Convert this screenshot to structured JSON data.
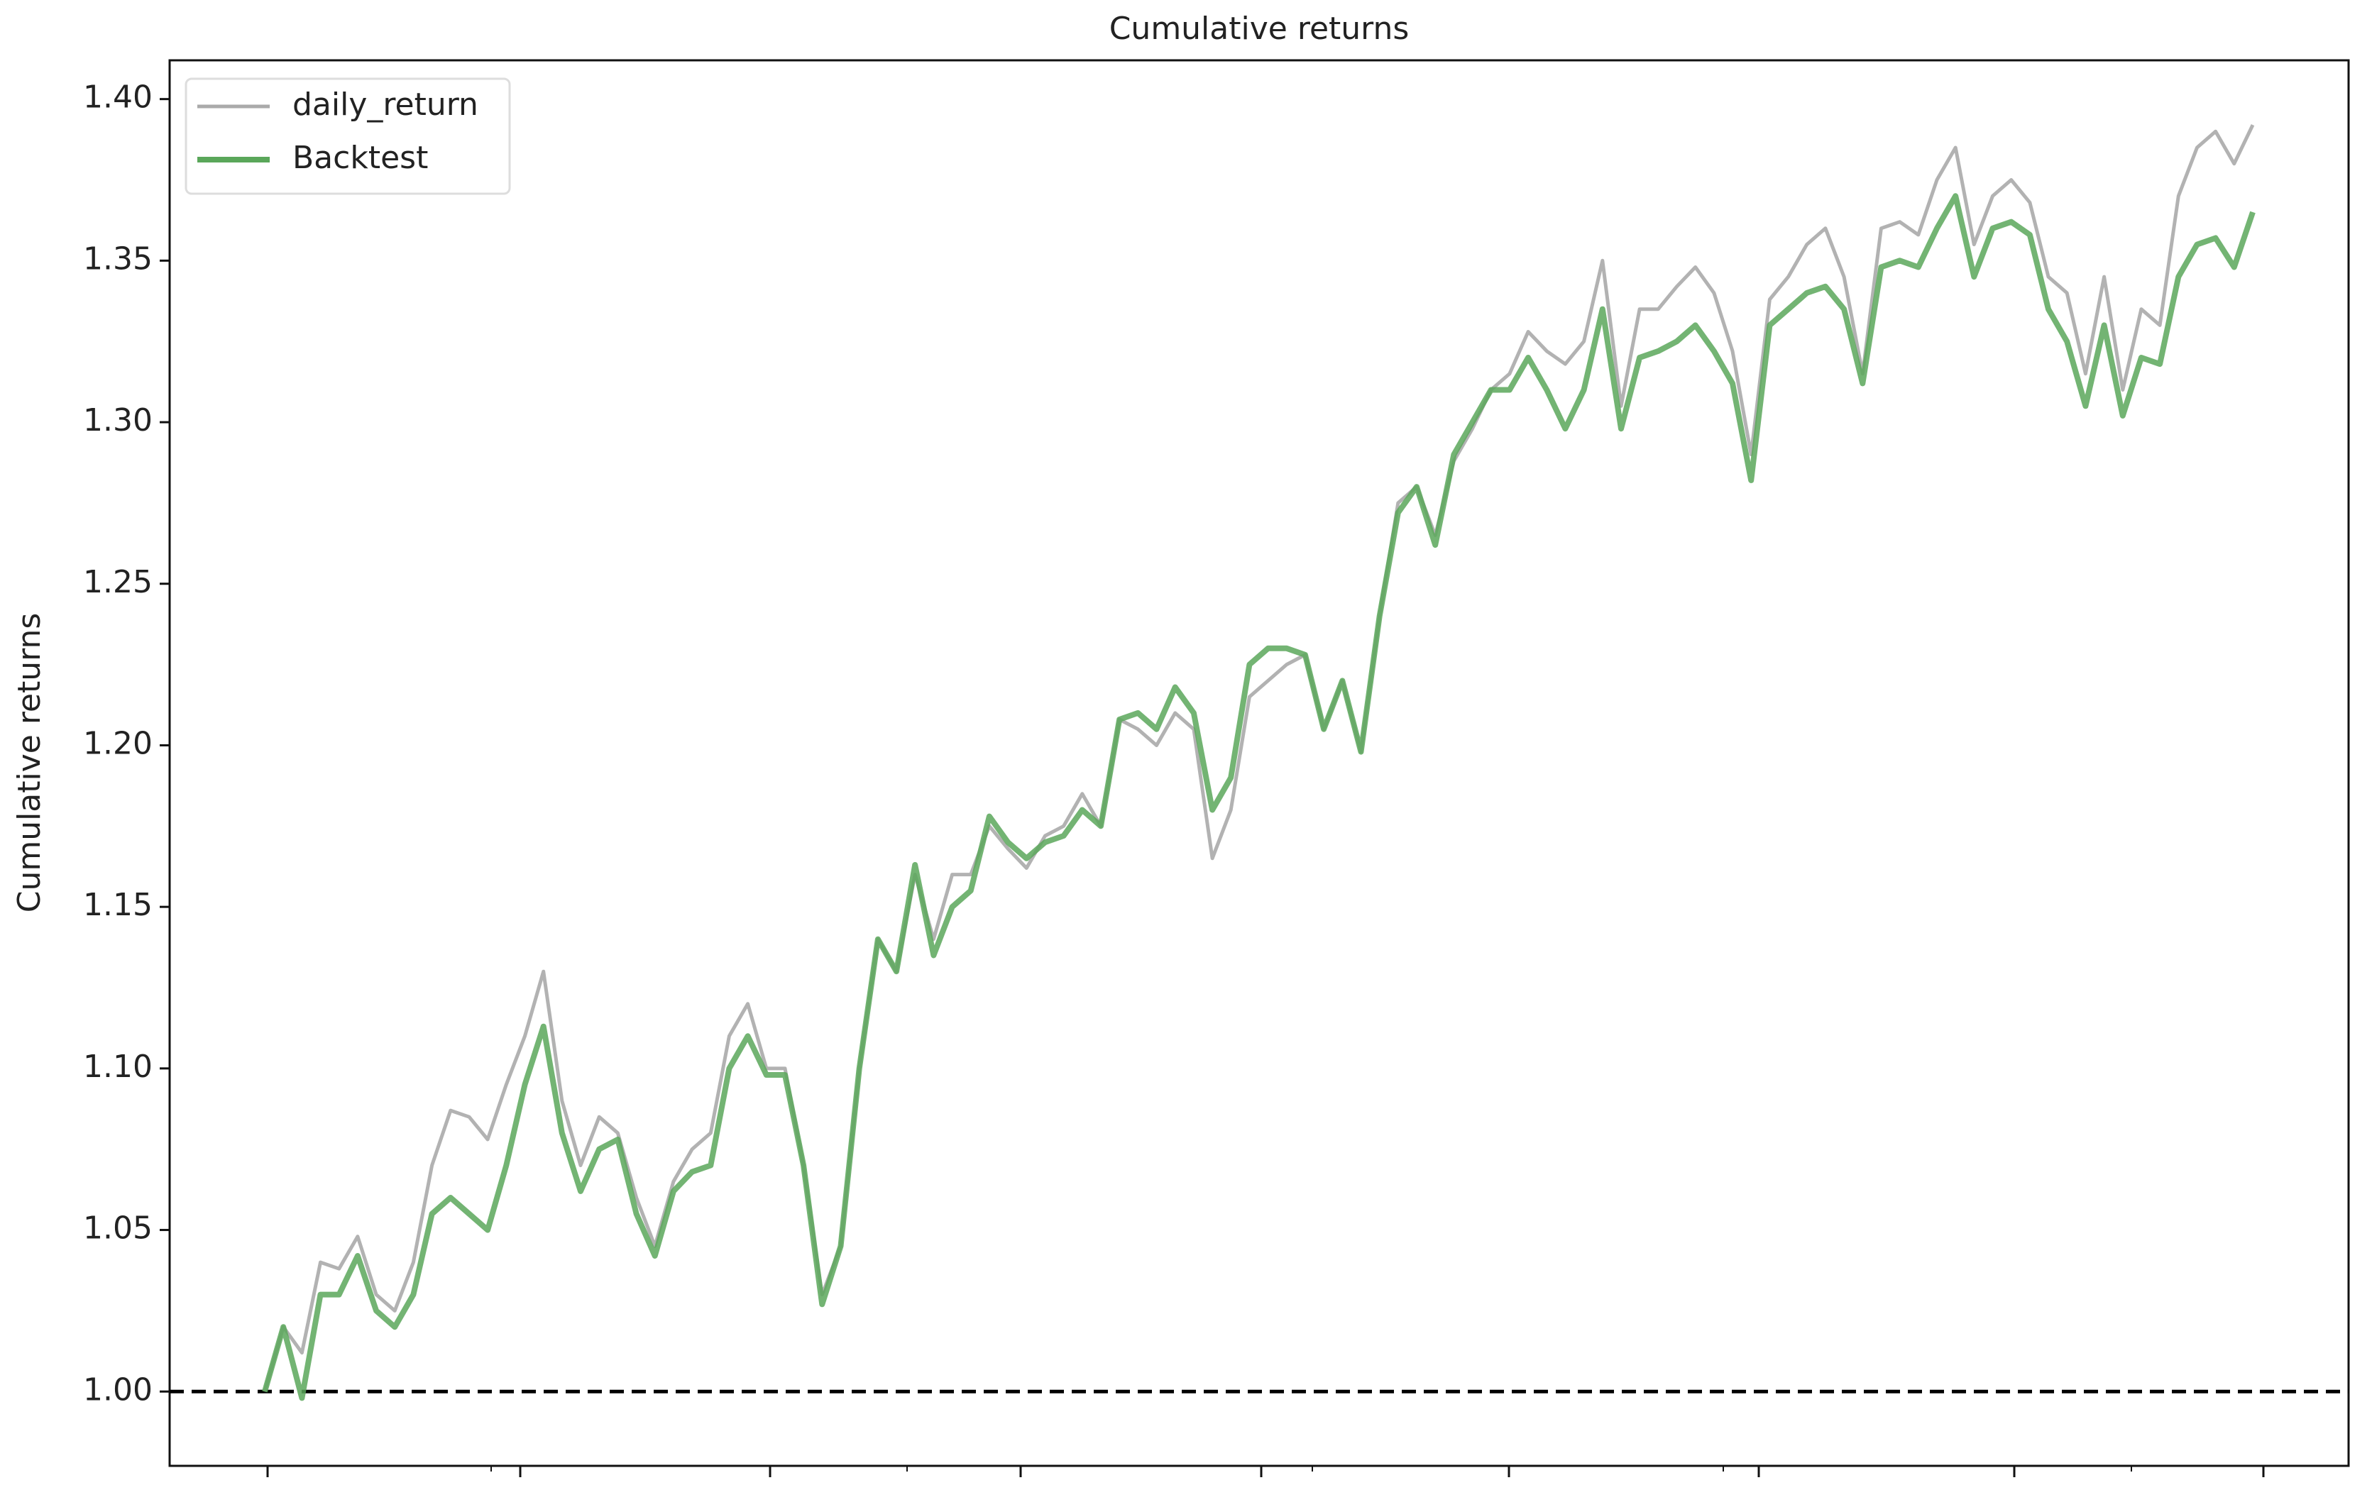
{
  "chart_data": {
    "type": "line",
    "title": "Cumulative returns",
    "y_label": "Cumulative returns",
    "ylim": [
      0.977,
      1.412
    ],
    "yticks": [
      {
        "value": 1,
        "label": "1.00"
      },
      1.05,
      {
        "value": 1.1,
        "label": "1.10"
      },
      1.15,
      {
        "value": 1.2,
        "label": "1.20"
      },
      1.25,
      {
        "value": 1.3,
        "label": "1.30"
      },
      1.35,
      {
        "value": 1.4,
        "label": "1.40"
      }
    ],
    "grid": false,
    "legend": "upper left",
    "baseline": 1,
    "series": [
      {
        "name": "daily_return",
        "color": "#aaaaaa",
        "values": [
          1.0,
          1.02,
          1.012,
          1.04,
          1.038,
          1.048,
          1.03,
          1.025,
          1.04,
          1.07,
          1.087,
          1.085,
          1.078,
          1.095,
          1.11,
          1.13,
          1.09,
          1.07,
          1.085,
          1.08,
          1.06,
          1.045,
          1.065,
          1.075,
          1.08,
          1.11,
          1.12,
          1.1,
          1.1,
          1.07,
          1.03,
          1.045,
          1.1,
          1.14,
          1.13,
          1.16,
          1.14,
          1.16,
          1.16,
          1.175,
          1.168,
          1.162,
          1.172,
          1.175,
          1.185,
          1.175,
          1.208,
          1.205,
          1.2,
          1.21,
          1.205,
          1.165,
          1.18,
          1.215,
          1.22,
          1.225,
          1.228,
          1.205,
          1.22,
          1.198,
          1.24,
          1.275,
          1.28,
          1.265,
          1.288,
          1.298,
          1.31,
          1.315,
          1.328,
          1.322,
          1.318,
          1.325,
          1.35,
          1.305,
          1.335,
          1.335,
          1.342,
          1.348,
          1.34,
          1.322,
          1.29,
          1.338,
          1.345,
          1.355,
          1.36,
          1.345,
          1.315,
          1.36,
          1.362,
          1.358,
          1.375,
          1.385,
          1.355,
          1.37,
          1.375,
          1.368,
          1.345,
          1.34,
          1.315,
          1.345,
          1.31,
          1.335,
          1.33,
          1.37,
          1.385,
          1.39,
          1.38,
          1.392
        ]
      },
      {
        "name": "Backtest",
        "color": "#5aa75a",
        "values": [
          1.0,
          1.02,
          0.998,
          1.03,
          1.03,
          1.042,
          1.025,
          1.02,
          1.03,
          1.055,
          1.06,
          1.055,
          1.05,
          1.07,
          1.095,
          1.113,
          1.08,
          1.062,
          1.075,
          1.078,
          1.055,
          1.042,
          1.062,
          1.068,
          1.07,
          1.1,
          1.11,
          1.098,
          1.098,
          1.07,
          1.027,
          1.045,
          1.1,
          1.14,
          1.13,
          1.163,
          1.135,
          1.15,
          1.155,
          1.178,
          1.17,
          1.165,
          1.17,
          1.172,
          1.18,
          1.175,
          1.208,
          1.21,
          1.205,
          1.218,
          1.21,
          1.18,
          1.19,
          1.225,
          1.23,
          1.23,
          1.228,
          1.205,
          1.22,
          1.198,
          1.24,
          1.272,
          1.28,
          1.262,
          1.29,
          1.3,
          1.31,
          1.31,
          1.32,
          1.31,
          1.298,
          1.31,
          1.335,
          1.298,
          1.32,
          1.322,
          1.325,
          1.33,
          1.322,
          1.312,
          1.282,
          1.33,
          1.335,
          1.34,
          1.342,
          1.335,
          1.312,
          1.348,
          1.35,
          1.348,
          1.36,
          1.37,
          1.345,
          1.36,
          1.362,
          1.358,
          1.335,
          1.325,
          1.305,
          1.33,
          1.302,
          1.32,
          1.318,
          1.345,
          1.355,
          1.357,
          1.348,
          1.365
        ]
      }
    ]
  }
}
